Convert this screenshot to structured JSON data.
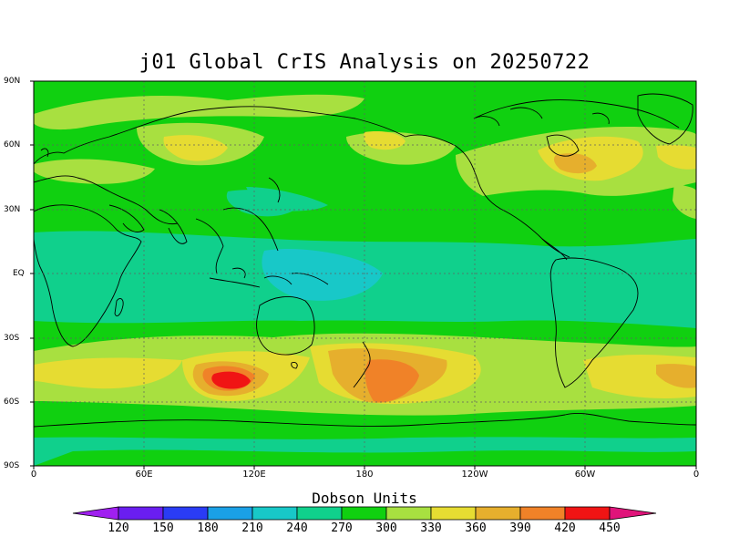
{
  "title": "j01 Global CrIS Analysis on 20250722",
  "lat_labels": [
    "90N",
    "60N",
    "30N",
    "EQ",
    "30S",
    "60S",
    "90S"
  ],
  "lon_labels": [
    "0",
    "60E",
    "120E",
    "180",
    "120W",
    "60W",
    "0"
  ],
  "colorbar": {
    "title": "Dobson Units",
    "ticks": [
      "120",
      "150",
      "180",
      "210",
      "240",
      "270",
      "300",
      "330",
      "360",
      "390",
      "420",
      "450"
    ],
    "colors": [
      "#a020f0",
      "#6a1ef0",
      "#2a3cf5",
      "#1aa0e6",
      "#18c8c8",
      "#10d08c",
      "#10d010",
      "#a8e040",
      "#e6dc32",
      "#e6af2d",
      "#f08228",
      "#f01414",
      "#e0147a",
      "#cc1aa0"
    ]
  }
}
